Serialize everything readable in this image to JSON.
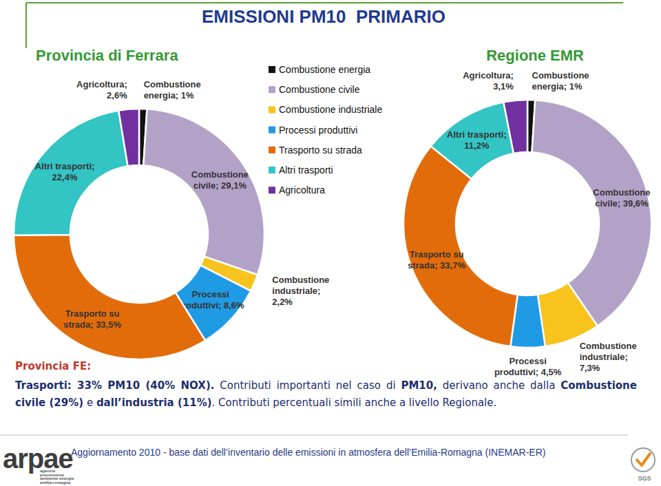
{
  "header": {
    "title": "EMISSIONI PM10  PRIMARIO"
  },
  "chart_data": [
    {
      "type": "pie",
      "title": "Provincia di Ferrara",
      "categories": [
        "Combustione energia",
        "Combustione civile",
        "Combustione industriale",
        "Processi produttivi",
        "Trasporto su strada",
        "Altri trasporti",
        "Agricoltura"
      ],
      "values": [
        1,
        29.1,
        2.2,
        8.6,
        33.5,
        22.4,
        2.6
      ],
      "value_labels": [
        "Combustione energia; 1%",
        "Combustione civile; 29,1%",
        "Combustione industriale; 2,2%",
        "Processi produttivi; 8,6%",
        "Trasporto su strada; 33,5%",
        "Altri trasporti; 22,4%",
        "Agricoltura; 2,6%"
      ],
      "colors": [
        "#111111",
        "#b3a2c7",
        "#f7c31c",
        "#1f9be6",
        "#e36c0a",
        "#33c4c4",
        "#7030a0"
      ],
      "data_labels": true,
      "legend": "right"
    },
    {
      "type": "pie",
      "title": "Regione EMR",
      "values": [
        1,
        39.6,
        7.3,
        4.5,
        33.7,
        11.2,
        3.1
      ],
      "value_labels": [
        "Combustione energia; 1%",
        "Combustione civile; 39,6%",
        "Combustione industriale; 7,3%",
        "Processi produttivi; 4,5%",
        "Trasporto su strada; 33,7%",
        "Altri trasporti; 11,2%",
        "Agricoltura; 3,1%"
      ],
      "colors": [
        "#111111",
        "#b3a2c7",
        "#f7c31c",
        "#1f9be6",
        "#e36c0a",
        "#33c4c4",
        "#7030a0"
      ],
      "data_labels": true
    }
  ],
  "note": {
    "heading": "Provincia FE:",
    "segments": [
      {
        "text": "Trasporti: 33% PM10 (40% NOX).",
        "bold": true
      },
      {
        "text": " Contributi importanti nel caso di ",
        "bold": false
      },
      {
        "text": "PM10,",
        "bold": true
      },
      {
        "text": " derivano anche dalla ",
        "bold": false
      },
      {
        "text": "Combustione civile (29%)",
        "bold": true
      },
      {
        "text": " e ",
        "bold": false
      },
      {
        "text": "dall’industria (11%)",
        "bold": true
      },
      {
        "text": ". Contributi percentuali simili anche a livello Regionale.",
        "bold": false
      }
    ]
  },
  "footer": {
    "source": "Aggiornamento 2010 - base dati dell’inventario delle emissioni in atmosfera dell’Emilia-Romagna (INEMAR-ER)",
    "logo": "arpae",
    "logo_subtitle": [
      "agenzia",
      "prevenzione",
      "ambiente energia",
      "emilia-romagna"
    ],
    "badge": "SGS"
  }
}
